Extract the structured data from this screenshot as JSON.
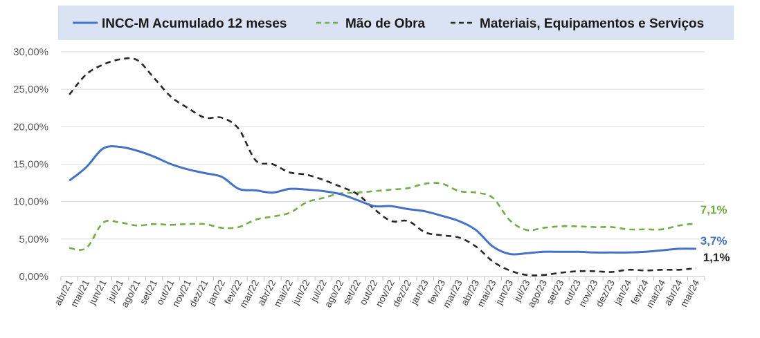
{
  "chart_data": {
    "type": "line",
    "title": "",
    "xlabel": "",
    "ylabel": "",
    "ylim": [
      0,
      30
    ],
    "y_ticks": [
      "0,00%",
      "5,00%",
      "10,00%",
      "15,00%",
      "20,00%",
      "25,00%",
      "30,00%"
    ],
    "y_tick_values": [
      0,
      5,
      10,
      15,
      20,
      25,
      30
    ],
    "grid": "horizontal",
    "legend_position": "top",
    "categories": [
      "abr/21",
      "mai/21",
      "jun/21",
      "jul/21",
      "ago/21",
      "set/21",
      "out/21",
      "nov/21",
      "dez/21",
      "jan/22",
      "fev/22",
      "mar/22",
      "abr/22",
      "mai/22",
      "jun/22",
      "jul/22",
      "ago/22",
      "set/22",
      "out/22",
      "nov/22",
      "dez/22",
      "jan/23",
      "fev/23",
      "mar/23",
      "abr/23",
      "mai/23",
      "jun/23",
      "jul/23",
      "ago/23",
      "set/23",
      "out/23",
      "nov/23",
      "dez/23",
      "jan/24",
      "fev/24",
      "mar/24",
      "abr/24",
      "mai/24"
    ],
    "series": [
      {
        "name": "INCC-M Acumulado 12 meses",
        "color": "#4472c4",
        "style": "solid",
        "values": [
          12.8,
          14.6,
          17.1,
          17.3,
          16.8,
          16.0,
          15.0,
          14.3,
          13.8,
          13.3,
          11.7,
          11.5,
          11.2,
          11.7,
          11.6,
          11.4,
          11.0,
          10.2,
          9.4,
          9.4,
          9.0,
          8.7,
          8.1,
          7.4,
          6.2,
          4.0,
          3.0,
          3.1,
          3.3,
          3.3,
          3.3,
          3.2,
          3.2,
          3.2,
          3.3,
          3.5,
          3.7,
          3.7
        ],
        "end_label": "3,7%"
      },
      {
        "name": "Mão de Obra",
        "color": "#70ad47",
        "style": "dashed",
        "values": [
          3.8,
          3.8,
          7.2,
          7.2,
          6.8,
          7.0,
          6.9,
          7.0,
          7.0,
          6.5,
          6.6,
          7.6,
          8.0,
          8.5,
          9.9,
          10.5,
          11.1,
          11.2,
          11.4,
          11.6,
          11.8,
          12.4,
          12.4,
          11.4,
          11.2,
          10.5,
          7.5,
          6.2,
          6.5,
          6.7,
          6.7,
          6.6,
          6.6,
          6.3,
          6.3,
          6.3,
          6.8,
          7.1
        ],
        "end_label": "7,1%"
      },
      {
        "name": "Materiais, Equipamentos e Serviços",
        "color": "#262626",
        "style": "dashed",
        "values": [
          24.3,
          27.0,
          28.3,
          29.0,
          28.9,
          26.5,
          24.0,
          22.5,
          21.2,
          21.2,
          19.7,
          15.5,
          15.0,
          13.9,
          13.6,
          12.9,
          12.0,
          11.0,
          9.0,
          7.4,
          7.4,
          5.9,
          5.5,
          5.2,
          4.0,
          2.0,
          0.8,
          0.2,
          0.2,
          0.5,
          0.7,
          0.7,
          0.6,
          0.9,
          0.8,
          0.9,
          0.9,
          1.1
        ],
        "end_label": "1,1%"
      }
    ]
  }
}
